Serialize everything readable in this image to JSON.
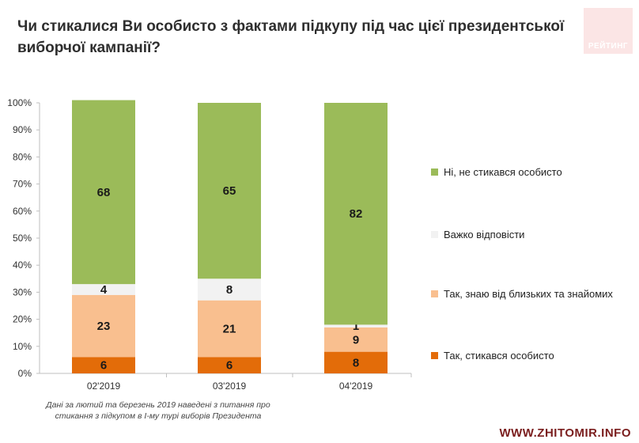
{
  "title": "Чи стикалися Ви особисто з фактами підкупу під час цієї президентської виборчої кампанії?",
  "logo_text": "РЕЙТИНГ",
  "note": "Дані за лютий та березень 2019 наведені з питання про стикання з підкупом в І-му турі виборів Президента",
  "watermark": "WWW.ZHITOMIR.INFO",
  "chart_data": {
    "type": "bar",
    "stacked": true,
    "categories": [
      "02'2019",
      "03'2019",
      "04'2019"
    ],
    "ylim": [
      0,
      100
    ],
    "yticks": [
      "0%",
      "10%",
      "20%",
      "30%",
      "40%",
      "50%",
      "60%",
      "70%",
      "80%",
      "90%",
      "100%"
    ],
    "series": [
      {
        "name": "Так, стикався особисто",
        "values": [
          6,
          6,
          8
        ],
        "color": "#e36c09"
      },
      {
        "name": "Так, знаю від близьких та знайомих",
        "values": [
          23,
          21,
          9
        ],
        "color": "#f9bf8f"
      },
      {
        "name": "Важко відповісти",
        "values": [
          4,
          8,
          1
        ],
        "color": "#f2f2f2"
      },
      {
        "name": "Ні, не стикався особисто",
        "values": [
          68,
          65,
          82
        ],
        "color": "#9bbb59"
      }
    ],
    "legend_order": [
      "Ні, не стикався особисто",
      "Важко відповісти",
      "Так, знаю від близьких та знайомих",
      "Так, стикався особисто"
    ]
  }
}
